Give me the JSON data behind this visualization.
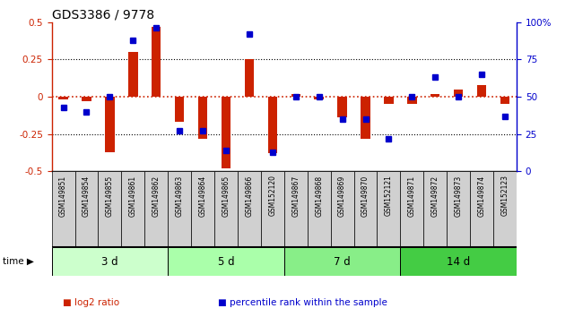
{
  "title": "GDS3386 / 9778",
  "samples": [
    "GSM149851",
    "GSM149854",
    "GSM149855",
    "GSM149861",
    "GSM149862",
    "GSM149863",
    "GSM149864",
    "GSM149865",
    "GSM149866",
    "GSM152120",
    "GSM149867",
    "GSM149868",
    "GSM149869",
    "GSM149870",
    "GSM152121",
    "GSM149871",
    "GSM149872",
    "GSM149873",
    "GSM149874",
    "GSM152123"
  ],
  "log2_ratio": [
    -0.02,
    -0.03,
    -0.37,
    0.3,
    0.47,
    -0.17,
    -0.28,
    -0.48,
    0.25,
    -0.38,
    0.02,
    -0.02,
    -0.14,
    -0.28,
    -0.05,
    -0.05,
    0.02,
    0.05,
    0.08,
    -0.05
  ],
  "percentile": [
    43,
    40,
    50,
    88,
    96,
    27,
    27,
    14,
    92,
    13,
    50,
    50,
    35,
    35,
    22,
    50,
    63,
    50,
    65,
    37
  ],
  "groups": [
    {
      "label": "3 d",
      "start": 0,
      "end": 5,
      "color": "#ccffcc"
    },
    {
      "label": "5 d",
      "start": 5,
      "end": 10,
      "color": "#aaffaa"
    },
    {
      "label": "7 d",
      "start": 10,
      "end": 15,
      "color": "#88ee88"
    },
    {
      "label": "14 d",
      "start": 15,
      "end": 20,
      "color": "#44cc44"
    }
  ],
  "bar_color_red": "#cc2200",
  "bar_color_blue": "#0000cc",
  "left_axis_color": "#cc2200",
  "right_axis_color": "#0000cc",
  "ylim_left": [
    -0.5,
    0.5
  ],
  "ylim_right": [
    0,
    100
  ],
  "yticks_left": [
    -0.5,
    -0.25,
    0,
    0.25,
    0.5
  ],
  "yticks_right": [
    0,
    25,
    50,
    75,
    100
  ],
  "legend_items": [
    "log2 ratio",
    "percentile rank within the sample"
  ],
  "legend_colors": [
    "#cc2200",
    "#0000cc"
  ],
  "fig_width": 6.4,
  "fig_height": 3.54,
  "dpi": 100
}
